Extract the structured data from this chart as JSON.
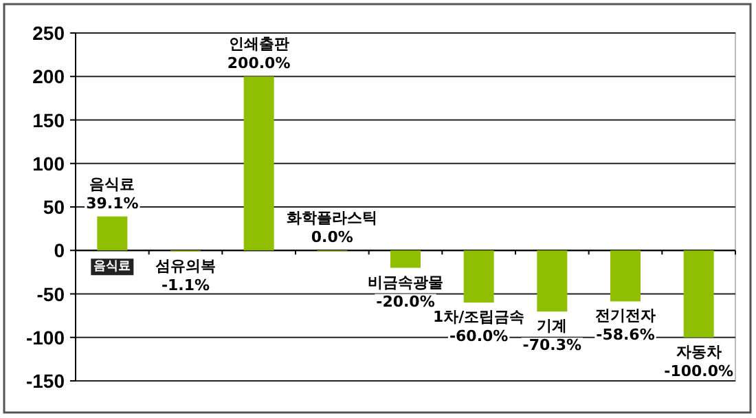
{
  "chart_data": {
    "type": "bar",
    "categories": [
      "음식료",
      "섬유의복",
      "인쇄출판",
      "화학플라스틱",
      "비금속광물",
      "1차/조립금속",
      "기계",
      "전기전자",
      "자동차"
    ],
    "values": [
      39.1,
      -1.1,
      200.0,
      0.0,
      -20.0,
      -60.0,
      -70.3,
      -58.6,
      -100.0
    ],
    "value_labels": [
      "39.1%",
      "-1.1%",
      "200.0%",
      "0.0%",
      "-20.0%",
      "-60.0%",
      "-70.3%",
      "-58.6%",
      "-100.0%"
    ],
    "color": "#8fbf00",
    "ylim": [
      -150,
      250
    ],
    "yticks": [
      -150,
      -100,
      -50,
      0,
      50,
      100,
      150,
      200,
      250
    ],
    "grid": "y",
    "annotations": [
      {
        "text": "음식료",
        "x": "음식료",
        "y": 0
      }
    ]
  }
}
